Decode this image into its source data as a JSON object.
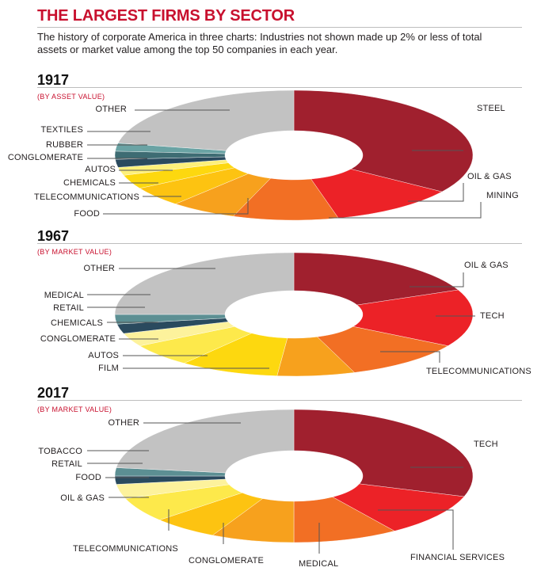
{
  "title": "THE LARGEST FIRMS BY SECTOR",
  "subtitle": "The history of corporate America in three charts: Industries not shown made up 2% or less of total assets or market value among the top 50 companies in each year.",
  "chart_data": [
    {
      "type": "pie",
      "year": "1917",
      "basis": "(BY ASSET VALUE)",
      "sectors": [
        {
          "name": "STEEL",
          "share": 0.345,
          "color": "#a0202e"
        },
        {
          "name": "OIL & GAS",
          "share": 0.115,
          "color": "#ec2227"
        },
        {
          "name": "MINING",
          "share": 0.095,
          "color": "#f26f24"
        },
        {
          "name": "FOOD",
          "share": 0.06,
          "color": "#f7a11d"
        },
        {
          "name": "TELECOMMUNICATIONS",
          "share": 0.05,
          "color": "#fdc311"
        },
        {
          "name": "CHEMICALS",
          "share": 0.035,
          "color": "#fdd80f"
        },
        {
          "name": "AUTOS",
          "share": 0.02,
          "color": "#fdf07a"
        },
        {
          "name": "CONGLOMERATE",
          "share": 0.02,
          "color": "#2a4a5e"
        },
        {
          "name": "RUBBER",
          "share": 0.02,
          "color": "#3e6c73"
        },
        {
          "name": "TEXTILES",
          "share": 0.02,
          "color": "#6aa3a4"
        },
        {
          "name": "OTHER",
          "share": 0.22,
          "color": "#c2c2c2"
        }
      ]
    },
    {
      "type": "pie",
      "year": "1967",
      "basis": "(BY MARKET VALUE)",
      "sectors": [
        {
          "name": "OIL & GAS",
          "share": 0.185,
          "color": "#a0202e"
        },
        {
          "name": "TECH",
          "share": 0.15,
          "color": "#ec2227"
        },
        {
          "name": "TELECOMMUNICATIONS",
          "share": 0.11,
          "color": "#f26f24"
        },
        {
          "name": "FILM",
          "share": 0.07,
          "color": "#f7a11d"
        },
        {
          "name": "AUTOS",
          "share": 0.09,
          "color": "#fdd80f"
        },
        {
          "name": "CONGLOMERATE",
          "share": 0.06,
          "color": "#fde94b"
        },
        {
          "name": "CHEMICALS",
          "share": 0.035,
          "color": "#fdf29c"
        },
        {
          "name": "RETAIL",
          "share": 0.025,
          "color": "#2a4a5e"
        },
        {
          "name": "MEDICAL",
          "share": 0.025,
          "color": "#5c8f93"
        },
        {
          "name": "OTHER",
          "share": 0.25,
          "color": "#c2c2c2"
        }
      ]
    },
    {
      "type": "pie",
      "year": "2017",
      "basis": "(BY MARKET VALUE)",
      "sectors": [
        {
          "name": "TECH",
          "share": 0.3,
          "color": "#a0202e"
        },
        {
          "name": "FINANCIAL SERVICES",
          "share": 0.105,
          "color": "#ec2227"
        },
        {
          "name": "MEDICAL",
          "share": 0.095,
          "color": "#f26f24"
        },
        {
          "name": "CONGLOMERATE",
          "share": 0.075,
          "color": "#f7a11d"
        },
        {
          "name": "TELECOMMUNICATIONS",
          "share": 0.06,
          "color": "#fdc311"
        },
        {
          "name": "OIL & GAS",
          "share": 0.06,
          "color": "#fde94b"
        },
        {
          "name": "FOOD",
          "share": 0.035,
          "color": "#fdf29c"
        },
        {
          "name": "RETAIL",
          "share": 0.02,
          "color": "#2a4a5e"
        },
        {
          "name": "TOBACCO",
          "share": 0.02,
          "color": "#5c8f93"
        },
        {
          "name": "OTHER",
          "share": 0.23,
          "color": "#c2c2c2"
        }
      ]
    }
  ]
}
